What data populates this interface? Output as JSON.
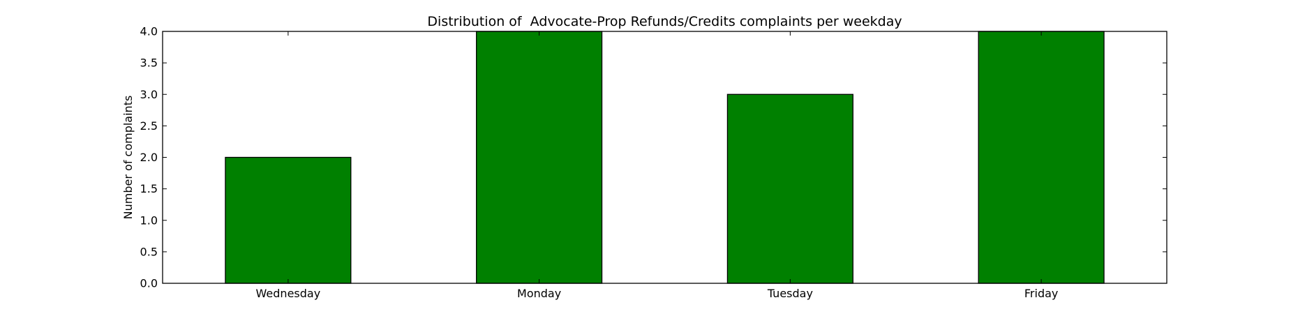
{
  "chart_data": {
    "type": "bar",
    "title": "Distribution of  Advocate-Prop Refunds/Credits complaints per weekday",
    "xlabel": "",
    "ylabel": "Number of complaints",
    "categories": [
      "Wednesday",
      "Monday",
      "Tuesday",
      "Friday"
    ],
    "values": [
      2,
      4,
      3,
      4
    ],
    "ylim": [
      0,
      4.0
    ],
    "yticks": [
      "0.0",
      "0.5",
      "1.0",
      "1.5",
      "2.0",
      "2.5",
      "3.0",
      "3.5",
      "4.0"
    ],
    "grid": false,
    "legend": "none",
    "colors": {
      "bar": "#008000",
      "edge": "#000000",
      "frame": "#000000"
    }
  }
}
